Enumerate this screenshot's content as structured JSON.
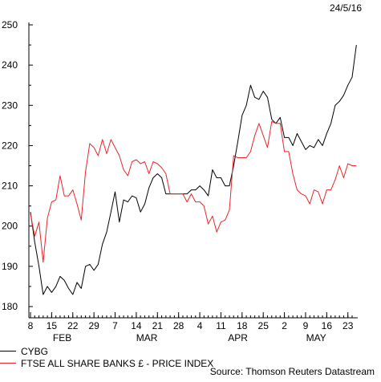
{
  "date_stamp": "24/5/16",
  "source": "Source: Thomson Reuters Datastream",
  "colors": {
    "cybg": "#000000",
    "ftse": "#e8262b",
    "axis": "#000000"
  },
  "chart_data": {
    "type": "line",
    "ylim": [
      180,
      250
    ],
    "y_ticks": [
      180,
      190,
      200,
      210,
      220,
      230,
      240,
      250
    ],
    "x_range": [
      0,
      76
    ],
    "x_ticks": [
      {
        "pos": 0,
        "label": "8"
      },
      {
        "pos": 5,
        "label": "15"
      },
      {
        "pos": 10,
        "label": "22"
      },
      {
        "pos": 15,
        "label": "29"
      },
      {
        "pos": 20,
        "label": "7"
      },
      {
        "pos": 25,
        "label": "14"
      },
      {
        "pos": 30,
        "label": "21"
      },
      {
        "pos": 35,
        "label": "28"
      },
      {
        "pos": 40,
        "label": "4"
      },
      {
        "pos": 45,
        "label": "11"
      },
      {
        "pos": 50,
        "label": "18"
      },
      {
        "pos": 55,
        "label": "25"
      },
      {
        "pos": 60,
        "label": "2"
      },
      {
        "pos": 65,
        "label": "9"
      },
      {
        "pos": 70,
        "label": "16"
      },
      {
        "pos": 75,
        "label": "23"
      }
    ],
    "months": [
      {
        "pos": 7.5,
        "label": "FEB"
      },
      {
        "pos": 27.5,
        "label": "MAR"
      },
      {
        "pos": 49,
        "label": "APR"
      },
      {
        "pos": 67.5,
        "label": "MAY"
      }
    ],
    "series": [
      {
        "name": "CYBG",
        "color": "#000000",
        "values": [
          203.5,
          196,
          190,
          183,
          185,
          183.5,
          185,
          187.5,
          186.5,
          184.5,
          183,
          186,
          184.5,
          190,
          190.5,
          189,
          190.5,
          195.5,
          198.5,
          203.5,
          208.5,
          201,
          206.5,
          206,
          207.5,
          207,
          203.5,
          205.5,
          209.5,
          212,
          213,
          212,
          208,
          208,
          208,
          208,
          208,
          208,
          209,
          209,
          210,
          209,
          207.5,
          214,
          212,
          212,
          210,
          210,
          215,
          221,
          227.5,
          230,
          235,
          232,
          231.5,
          233.5,
          232,
          226.5,
          225.5,
          227,
          222,
          222,
          220,
          223,
          221,
          219,
          220,
          219.5,
          221.5,
          220,
          223,
          225.5,
          230,
          231,
          232.5,
          235,
          237,
          245
        ]
      },
      {
        "name": "FTSE ALL SHARE BANKS £ - PRICE INDEX",
        "color": "#e8262b",
        "values": [
          203,
          197.5,
          201,
          191,
          202,
          206,
          206.5,
          212.5,
          207.5,
          207.5,
          209,
          205.5,
          201.5,
          213.5,
          220.5,
          219.5,
          217.5,
          221.5,
          218,
          221.5,
          219.5,
          217.5,
          214,
          212.5,
          216,
          216.5,
          215.5,
          216,
          213,
          216,
          215.5,
          214.5,
          213,
          208,
          208,
          208,
          208,
          206,
          208,
          206,
          206,
          205,
          200.5,
          202.5,
          198.5,
          201,
          201.5,
          204,
          217.5,
          217,
          217,
          217,
          218.5,
          222.5,
          225.5,
          222.5,
          219.5,
          226,
          225.5,
          225.5,
          218.5,
          218.5,
          213,
          209,
          208,
          207.5,
          205.5,
          209,
          208.5,
          205.5,
          209,
          209,
          211.5,
          215,
          212,
          215.5,
          215,
          215
        ]
      }
    ]
  }
}
